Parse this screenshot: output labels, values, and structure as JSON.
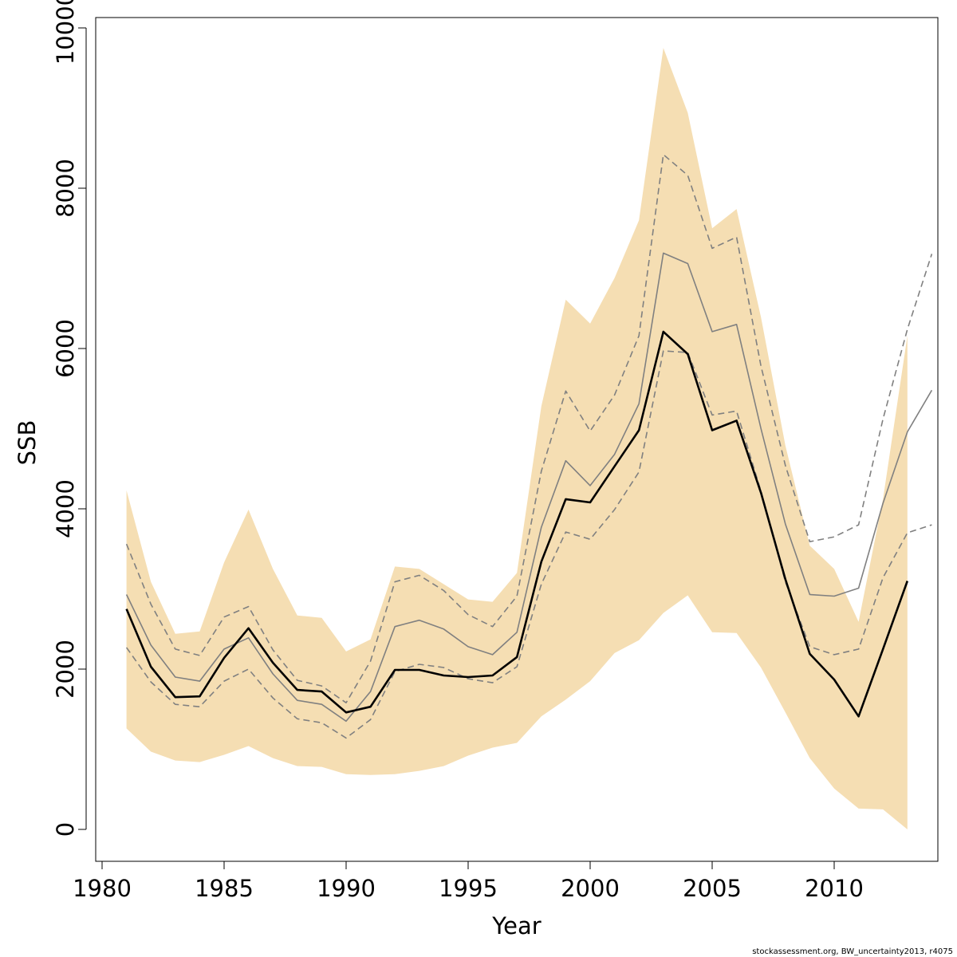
{
  "footer": {
    "credit": "stockassessment.org, BW_uncertainty2013, r4075"
  },
  "colors": {
    "band": "#f5deb3",
    "main_line": "#000000",
    "alt_line": "#808080",
    "dashed_line": "#808080",
    "axis": "#000000",
    "frame": "#000000"
  },
  "chart_data": {
    "type": "line",
    "title": "",
    "xlabel": "Year",
    "ylabel": "SSB",
    "xlim": [
      1980,
      2014
    ],
    "ylim": [
      0,
      10000
    ],
    "x_ticks": [
      1980,
      1985,
      1990,
      1995,
      2000,
      2005,
      2010
    ],
    "x_tick_labels": [
      "1980",
      "1985",
      "1990",
      "1995",
      "2000",
      "2005",
      "2010"
    ],
    "y_ticks": [
      0,
      2000,
      4000,
      6000,
      8000,
      10000
    ],
    "y_tick_labels": [
      "0",
      "2000",
      "4000",
      "6000",
      "8000",
      "10000"
    ],
    "grid": false,
    "series": [
      {
        "style": "band",
        "x": [
          1981,
          1982,
          1983,
          1984,
          1985,
          1986,
          1987,
          1988,
          1989,
          1990,
          1991,
          1992,
          1993,
          1994,
          1995,
          1996,
          1997,
          1998,
          1999,
          2000,
          2001,
          2002,
          2003,
          2004,
          2005,
          2006,
          2007,
          2008,
          2009,
          2010,
          2011,
          2012,
          2013
        ],
        "upper": [
          4230,
          3090,
          2440,
          2470,
          3330,
          3990,
          3250,
          2670,
          2640,
          2220,
          2370,
          3280,
          3250,
          3060,
          2870,
          2840,
          3200,
          5280,
          6610,
          6310,
          6880,
          7600,
          9750,
          8940,
          7500,
          7740,
          6390,
          4790,
          3540,
          3250,
          2590,
          4120,
          6160
        ],
        "lower": [
          1260,
          970,
          860,
          840,
          930,
          1040,
          890,
          790,
          780,
          690,
          680,
          690,
          730,
          790,
          920,
          1020,
          1080,
          1410,
          1620,
          1850,
          2200,
          2360,
          2700,
          2920,
          2460,
          2450,
          2020,
          1460,
          890,
          510,
          260,
          250,
          0
        ]
      },
      {
        "style": "solid-gray",
        "x": [
          1981,
          1982,
          1983,
          1984,
          1985,
          1986,
          1987,
          1988,
          1989,
          1990,
          1991,
          1992,
          1993,
          1994,
          1995,
          1996,
          1997,
          1998,
          1999,
          2000,
          2001,
          2002,
          2003,
          2004,
          2005,
          2006,
          2007,
          2008,
          2009,
          2010,
          2011,
          2012,
          2013,
          2014
        ],
        "values": [
          2930,
          2300,
          1900,
          1850,
          2250,
          2390,
          1940,
          1610,
          1560,
          1350,
          1720,
          2530,
          2610,
          2500,
          2280,
          2180,
          2460,
          3770,
          4600,
          4290,
          4680,
          5310,
          7190,
          7060,
          6210,
          6300,
          5000,
          3810,
          2930,
          2910,
          3010,
          4070,
          4960,
          5480
        ]
      },
      {
        "style": "dashed-upper",
        "x": [
          1981,
          1982,
          1983,
          1984,
          1985,
          1986,
          1987,
          1988,
          1989,
          1990,
          1991,
          1992,
          1993,
          1994,
          1995,
          1996,
          1997,
          1998,
          1999,
          2000,
          2001,
          2002,
          2003,
          2004,
          2005,
          2006,
          2007,
          2008,
          2009,
          2010,
          2011,
          2012,
          2013,
          2014
        ],
        "values": [
          3560,
          2810,
          2250,
          2170,
          2650,
          2780,
          2240,
          1860,
          1790,
          1580,
          2100,
          3090,
          3170,
          2980,
          2680,
          2530,
          2910,
          4470,
          5470,
          4970,
          5420,
          6160,
          8420,
          8160,
          7250,
          7390,
          5780,
          4540,
          3590,
          3650,
          3800,
          5120,
          6240,
          7180
        ]
      },
      {
        "style": "dashed-lower",
        "x": [
          1981,
          1982,
          1983,
          1984,
          1985,
          1986,
          1987,
          1988,
          1989,
          1990,
          1991,
          1992,
          1993,
          1994,
          1995,
          1996,
          1997,
          1998,
          1999,
          2000,
          2001,
          2002,
          2003,
          2004,
          2005,
          2006,
          2007,
          2008,
          2009,
          2010,
          2011,
          2012,
          2013,
          2014
        ],
        "values": [
          2270,
          1840,
          1560,
          1530,
          1850,
          2000,
          1640,
          1380,
          1330,
          1140,
          1370,
          1970,
          2060,
          2020,
          1880,
          1830,
          2030,
          3060,
          3710,
          3620,
          3990,
          4460,
          5970,
          5950,
          5170,
          5220,
          4220,
          3090,
          2280,
          2180,
          2250,
          3140,
          3700,
          3800
        ]
      },
      {
        "style": "solid-black",
        "x": [
          1981,
          1982,
          1983,
          1984,
          1985,
          1986,
          1987,
          1988,
          1989,
          1990,
          1991,
          1992,
          1993,
          1994,
          1995,
          1996,
          1997,
          1998,
          1999,
          2000,
          2001,
          2002,
          2003,
          2004,
          2005,
          2006,
          2007,
          2008,
          2009,
          2010,
          2011,
          2012,
          2013
        ],
        "values": [
          2750,
          2030,
          1650,
          1660,
          2140,
          2510,
          2080,
          1740,
          1720,
          1460,
          1530,
          1990,
          1990,
          1920,
          1900,
          1920,
          2150,
          3340,
          4120,
          4080,
          4530,
          4980,
          6210,
          5930,
          4980,
          5100,
          4200,
          3120,
          2190,
          1870,
          1410,
          2250,
          3100
        ]
      }
    ]
  }
}
